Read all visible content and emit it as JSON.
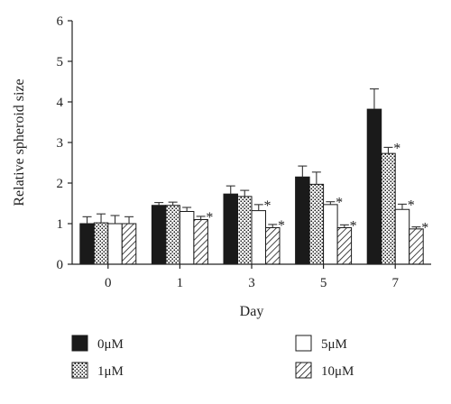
{
  "chart_data": {
    "type": "bar",
    "xlabel": "Day",
    "ylabel": "Relative spheroid size",
    "ylim": [
      0,
      6
    ],
    "yticks": [
      "0",
      "1",
      "2",
      "3",
      "4",
      "5",
      "6"
    ],
    "categories": [
      "0",
      "1",
      "3",
      "5",
      "7"
    ],
    "grid": false,
    "legend_position": "bottom",
    "significance_marker": "*",
    "series": [
      {
        "name": "0μM",
        "fill": "solid",
        "color": "#1a1a1a",
        "values": [
          1.0,
          1.45,
          1.73,
          2.15,
          3.82
        ],
        "errors": [
          0.17,
          0.07,
          0.2,
          0.27,
          0.5
        ],
        "significant": [
          false,
          false,
          false,
          false,
          false
        ]
      },
      {
        "name": "1μM",
        "fill": "dots",
        "color": "#1a1a1a",
        "values": [
          1.02,
          1.45,
          1.67,
          1.97,
          2.73
        ],
        "errors": [
          0.22,
          0.08,
          0.15,
          0.3,
          0.15
        ],
        "significant": [
          false,
          false,
          false,
          false,
          true
        ]
      },
      {
        "name": "5μM",
        "fill": "open",
        "color": "#ffffff",
        "values": [
          1.0,
          1.3,
          1.32,
          1.47,
          1.35
        ],
        "errors": [
          0.2,
          0.1,
          0.15,
          0.07,
          0.13
        ],
        "significant": [
          false,
          false,
          true,
          true,
          true
        ]
      },
      {
        "name": "10μM",
        "fill": "hatch",
        "color": "#1a1a1a",
        "values": [
          1.0,
          1.1,
          0.9,
          0.9,
          0.87
        ],
        "errors": [
          0.17,
          0.08,
          0.08,
          0.07,
          0.05
        ],
        "significant": [
          false,
          true,
          true,
          true,
          true
        ]
      }
    ]
  }
}
